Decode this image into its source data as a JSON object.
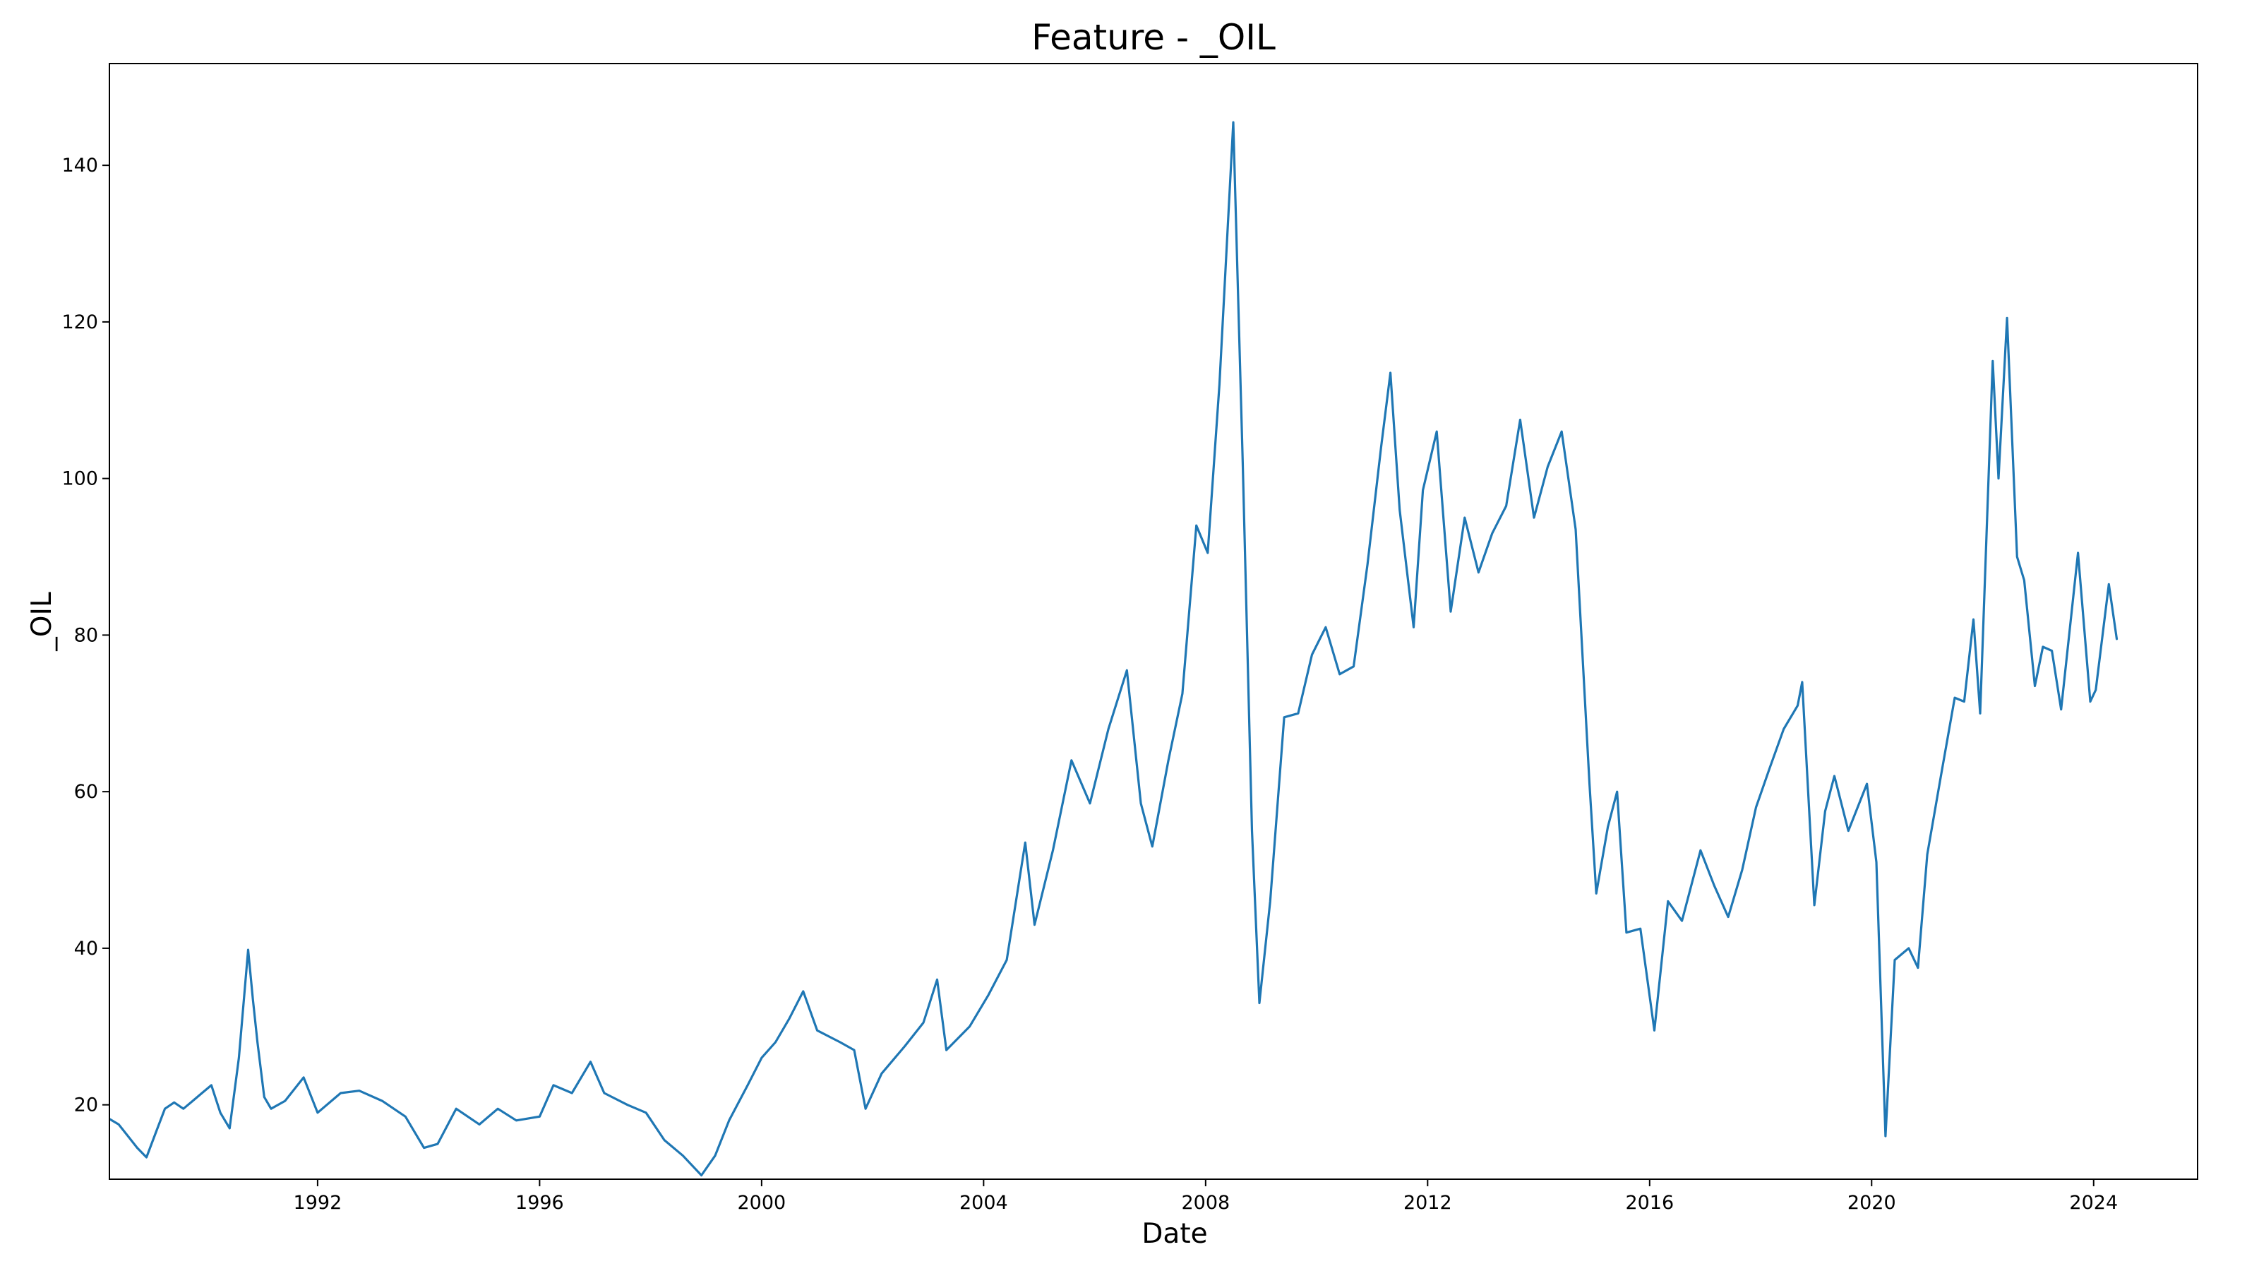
{
  "chart_data": {
    "type": "line",
    "title": "Feature - _OIL",
    "xlabel": "Date",
    "ylabel": "_OIL",
    "xlim": [
      "1988-04-01",
      "2025-11-15"
    ],
    "ylim": [
      10.5,
      153
    ],
    "x_ticks": [
      "1992",
      "1996",
      "2000",
      "2004",
      "2008",
      "2012",
      "2016",
      "2020",
      "2024"
    ],
    "y_ticks": [
      20,
      40,
      60,
      80,
      100,
      120,
      140
    ],
    "grid": false,
    "colors": {
      "series": "#1f77b4"
    },
    "series": [
      {
        "points": [
          [
            "1988-04-01",
            18.2
          ],
          [
            "1988-06-01",
            17.5
          ],
          [
            "1988-08-01",
            16.0
          ],
          [
            "1988-10-01",
            14.5
          ],
          [
            "1988-12-01",
            13.3
          ],
          [
            "1989-02-01",
            16.5
          ],
          [
            "1989-04-01",
            19.5
          ],
          [
            "1989-06-01",
            20.3
          ],
          [
            "1989-08-01",
            19.5
          ],
          [
            "1989-10-01",
            20.5
          ],
          [
            "1989-12-01",
            21.5
          ],
          [
            "1990-02-01",
            22.5
          ],
          [
            "1990-04-01",
            19.0
          ],
          [
            "1990-06-01",
            17.0
          ],
          [
            "1990-08-01",
            26.0
          ],
          [
            "1990-10-01",
            39.8
          ],
          [
            "1990-11-01",
            33.5
          ],
          [
            "1990-12-01",
            28.0
          ],
          [
            "1991-01-15",
            21.0
          ],
          [
            "1991-03-01",
            19.5
          ],
          [
            "1991-06-01",
            20.5
          ],
          [
            "1991-10-01",
            23.5
          ],
          [
            "1992-01-01",
            19.0
          ],
          [
            "1992-06-01",
            21.5
          ],
          [
            "1992-10-01",
            21.8
          ],
          [
            "1993-03-01",
            20.5
          ],
          [
            "1993-08-01",
            18.5
          ],
          [
            "1993-12-01",
            14.5
          ],
          [
            "1994-03-01",
            15.0
          ],
          [
            "1994-07-01",
            19.5
          ],
          [
            "1994-12-01",
            17.5
          ],
          [
            "1995-04-01",
            19.5
          ],
          [
            "1995-08-01",
            18.0
          ],
          [
            "1996-01-01",
            18.5
          ],
          [
            "1996-04-01",
            22.5
          ],
          [
            "1996-08-01",
            21.5
          ],
          [
            "1996-12-01",
            25.5
          ],
          [
            "1997-03-01",
            21.5
          ],
          [
            "1997-08-01",
            20.0
          ],
          [
            "1997-12-01",
            19.0
          ],
          [
            "1998-04-01",
            15.5
          ],
          [
            "1998-08-01",
            13.5
          ],
          [
            "1998-12-01",
            11.0
          ],
          [
            "1999-03-01",
            13.5
          ],
          [
            "1999-06-01",
            18.0
          ],
          [
            "1999-10-01",
            22.5
          ],
          [
            "2000-01-01",
            26.0
          ],
          [
            "2000-04-01",
            28.0
          ],
          [
            "2000-07-01",
            31.0
          ],
          [
            "2000-10-01",
            34.5
          ],
          [
            "2001-01-01",
            29.5
          ],
          [
            "2001-06-01",
            28.0
          ],
          [
            "2001-09-01",
            27.0
          ],
          [
            "2001-11-15",
            19.5
          ],
          [
            "2002-03-01",
            24.0
          ],
          [
            "2002-08-01",
            27.5
          ],
          [
            "2002-12-01",
            30.5
          ],
          [
            "2003-03-01",
            36.0
          ],
          [
            "2003-05-01",
            27.0
          ],
          [
            "2003-10-01",
            30.0
          ],
          [
            "2004-02-01",
            34.0
          ],
          [
            "2004-06-01",
            38.5
          ],
          [
            "2004-10-01",
            53.5
          ],
          [
            "2004-12-01",
            43.0
          ],
          [
            "2005-04-01",
            52.5
          ],
          [
            "2005-08-01",
            64.0
          ],
          [
            "2005-12-01",
            58.5
          ],
          [
            "2006-04-01",
            68.0
          ],
          [
            "2006-08-01",
            75.5
          ],
          [
            "2006-11-01",
            58.5
          ],
          [
            "2007-01-15",
            53.0
          ],
          [
            "2007-05-01",
            64.0
          ],
          [
            "2007-08-01",
            72.5
          ],
          [
            "2007-11-01",
            94.0
          ],
          [
            "2008-01-15",
            90.5
          ],
          [
            "2008-04-01",
            112.0
          ],
          [
            "2008-07-01",
            145.5
          ],
          [
            "2008-09-01",
            102.0
          ],
          [
            "2008-11-01",
            55.0
          ],
          [
            "2008-12-20",
            33.0
          ],
          [
            "2009-03-01",
            46.0
          ],
          [
            "2009-06-01",
            69.5
          ],
          [
            "2009-09-01",
            70.0
          ],
          [
            "2009-12-01",
            77.5
          ],
          [
            "2010-03-01",
            81.0
          ],
          [
            "2010-06-01",
            75.0
          ],
          [
            "2010-09-01",
            76.0
          ],
          [
            "2010-12-01",
            89.0
          ],
          [
            "2011-03-01",
            104.0
          ],
          [
            "2011-05-01",
            113.5
          ],
          [
            "2011-07-01",
            96.0
          ],
          [
            "2011-10-01",
            81.0
          ],
          [
            "2011-12-01",
            98.5
          ],
          [
            "2012-03-01",
            106.0
          ],
          [
            "2012-06-01",
            83.0
          ],
          [
            "2012-09-01",
            95.0
          ],
          [
            "2012-12-01",
            88.0
          ],
          [
            "2013-03-01",
            93.0
          ],
          [
            "2013-06-01",
            96.5
          ],
          [
            "2013-09-01",
            107.5
          ],
          [
            "2013-12-01",
            95.0
          ],
          [
            "2014-03-01",
            101.5
          ],
          [
            "2014-06-01",
            106.0
          ],
          [
            "2014-09-01",
            93.5
          ],
          [
            "2014-12-01",
            61.0
          ],
          [
            "2015-01-15",
            47.0
          ],
          [
            "2015-04-01",
            55.5
          ],
          [
            "2015-06-01",
            60.0
          ],
          [
            "2015-08-01",
            42.0
          ],
          [
            "2015-11-01",
            42.5
          ],
          [
            "2016-02-01",
            29.5
          ],
          [
            "2016-05-01",
            46.0
          ],
          [
            "2016-08-01",
            43.5
          ],
          [
            "2016-12-01",
            52.5
          ],
          [
            "2017-03-01",
            48.0
          ],
          [
            "2017-06-01",
            44.0
          ],
          [
            "2017-09-01",
            50.0
          ],
          [
            "2017-12-01",
            58.0
          ],
          [
            "2018-03-01",
            63.0
          ],
          [
            "2018-06-01",
            68.0
          ],
          [
            "2018-09-01",
            71.0
          ],
          [
            "2018-10-01",
            74.0
          ],
          [
            "2018-12-20",
            45.5
          ],
          [
            "2019-03-01",
            57.5
          ],
          [
            "2019-05-01",
            62.0
          ],
          [
            "2019-08-01",
            55.0
          ],
          [
            "2019-12-01",
            61.0
          ],
          [
            "2020-02-01",
            51.0
          ],
          [
            "2020-04-01",
            16.0
          ],
          [
            "2020-06-01",
            38.5
          ],
          [
            "2020-09-01",
            40.0
          ],
          [
            "2020-11-01",
            37.5
          ],
          [
            "2021-01-01",
            52.0
          ],
          [
            "2021-04-01",
            62.0
          ],
          [
            "2021-07-01",
            72.0
          ],
          [
            "2021-09-01",
            71.5
          ],
          [
            "2021-11-01",
            82.0
          ],
          [
            "2021-12-15",
            70.0
          ],
          [
            "2022-03-08",
            115.0
          ],
          [
            "2022-04-15",
            100.0
          ],
          [
            "2022-06-10",
            120.5
          ],
          [
            "2022-08-15",
            90.0
          ],
          [
            "2022-10-01",
            87.0
          ],
          [
            "2022-12-10",
            73.5
          ],
          [
            "2023-02-01",
            78.5
          ],
          [
            "2023-04-01",
            78.0
          ],
          [
            "2023-06-01",
            70.5
          ],
          [
            "2023-09-20",
            90.5
          ],
          [
            "2023-12-10",
            71.5
          ],
          [
            "2024-01-15",
            73.0
          ],
          [
            "2024-04-10",
            86.5
          ],
          [
            "2024-06-01",
            79.5
          ]
        ]
      }
    ]
  }
}
